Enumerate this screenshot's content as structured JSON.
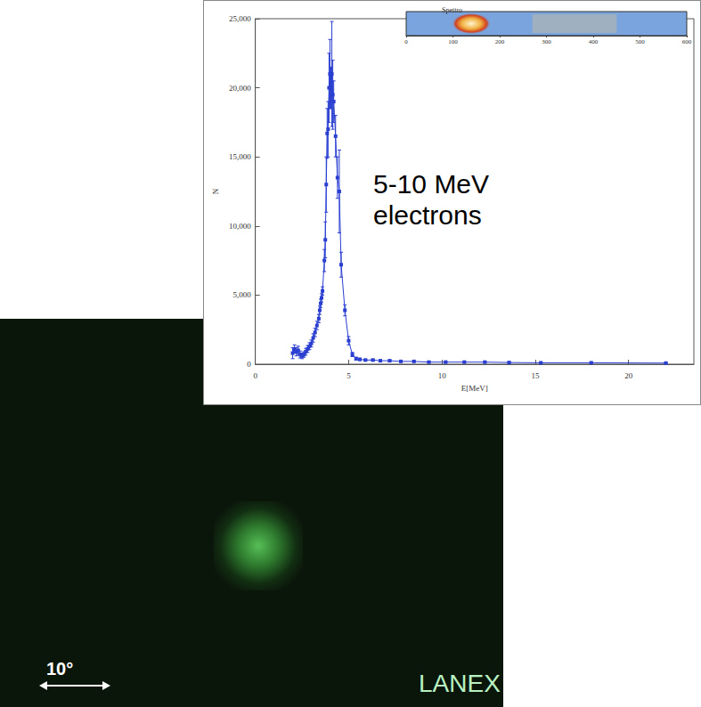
{
  "chart_data": {
    "type": "line",
    "title": "Spettro",
    "x_label": "E[MeV]",
    "y_label": "N",
    "annotation": "5-10 MeV electrons",
    "series": [
      {
        "color": "#2a3fd0",
        "marker": "square",
        "x": [
          2.0,
          2.1,
          2.2,
          2.3,
          2.4,
          2.5,
          2.6,
          2.7,
          2.8,
          2.9,
          3.0,
          3.1,
          3.2,
          3.3,
          3.4,
          3.45,
          3.5,
          3.55,
          3.6,
          3.7,
          3.75,
          3.8,
          3.85,
          3.9,
          3.95,
          4.0,
          4.05,
          4.1,
          4.15,
          4.2,
          4.3,
          4.4,
          4.5,
          4.6,
          4.8,
          5.0,
          5.2,
          5.4,
          5.6,
          5.9,
          6.3,
          6.7,
          7.2,
          7.8,
          8.5,
          9.3,
          10.2,
          11.2,
          12.3,
          13.6,
          15.3,
          18.0,
          22.0
        ],
        "values": [
          800,
          1100,
          900,
          1000,
          700,
          600,
          700,
          900,
          1100,
          1300,
          1500,
          1900,
          2300,
          2800,
          3300,
          3900,
          4400,
          4800,
          5300,
          7500,
          9000,
          13000,
          16700,
          17000,
          20000,
          21000,
          20000,
          21000,
          19500,
          19000,
          16500,
          13500,
          12500,
          7200,
          3900,
          1700,
          700,
          400,
          350,
          300,
          300,
          250,
          250,
          200,
          200,
          150,
          150,
          150,
          150,
          120,
          100,
          100,
          80
        ],
        "errors": [
          400,
          300,
          300,
          300,
          250,
          200,
          200,
          250,
          250,
          250,
          250,
          300,
          300,
          300,
          300,
          300,
          300,
          300,
          300,
          800,
          1300,
          2000,
          1800,
          2000,
          2500,
          2500,
          1500,
          3800,
          2500,
          1500,
          1500,
          1500,
          3000,
          900,
          400,
          300,
          150,
          100,
          80,
          60,
          60,
          50,
          50,
          40,
          40,
          40,
          30,
          30,
          30,
          30,
          30,
          30,
          30
        ]
      }
    ],
    "xlim": [
      0,
      23.5
    ],
    "xticks": [
      0,
      5,
      10,
      15,
      20
    ],
    "ylim": [
      0,
      25000
    ],
    "yticks": [
      0,
      5000,
      10000,
      15000,
      20000,
      25000
    ],
    "grid": false,
    "inset": {
      "xlim": [
        0,
        600
      ],
      "xticks": [
        0,
        100,
        200,
        300,
        400,
        500,
        600
      ]
    }
  },
  "photo": {
    "label": "LANEX",
    "scale_label": "10°"
  }
}
